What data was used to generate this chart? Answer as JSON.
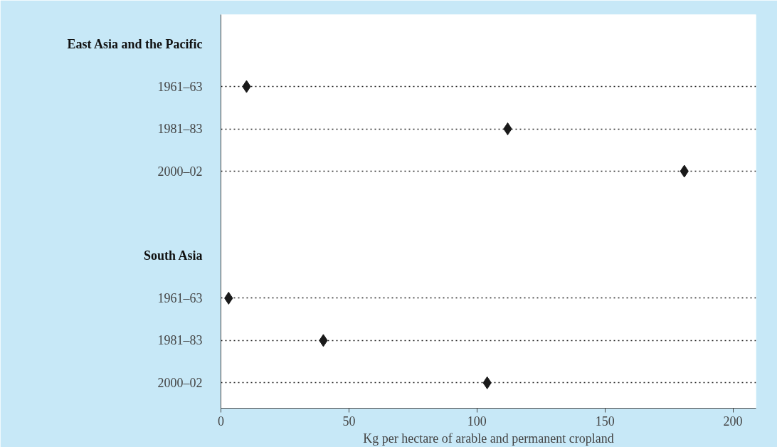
{
  "chart_data": {
    "type": "scatter",
    "orientation": "horizontal",
    "categories": [
      "East Asia and the Pacific",
      "1961–63",
      "1981–83",
      "2000–02",
      null,
      "South Asia",
      "1961–63",
      "1981–83",
      "2000–02"
    ],
    "series": [
      {
        "color": "#1a1a1a",
        "values": [
          null,
          10,
          112,
          181,
          null,
          null,
          3,
          40,
          104
        ]
      }
    ],
    "xlim": [
      0,
      209
    ],
    "xticks": [
      0,
      50,
      100,
      150,
      200
    ],
    "xlabel": "Kg per hectare of arable and permanent cropland",
    "grid": "y",
    "marker": "diamond"
  }
}
